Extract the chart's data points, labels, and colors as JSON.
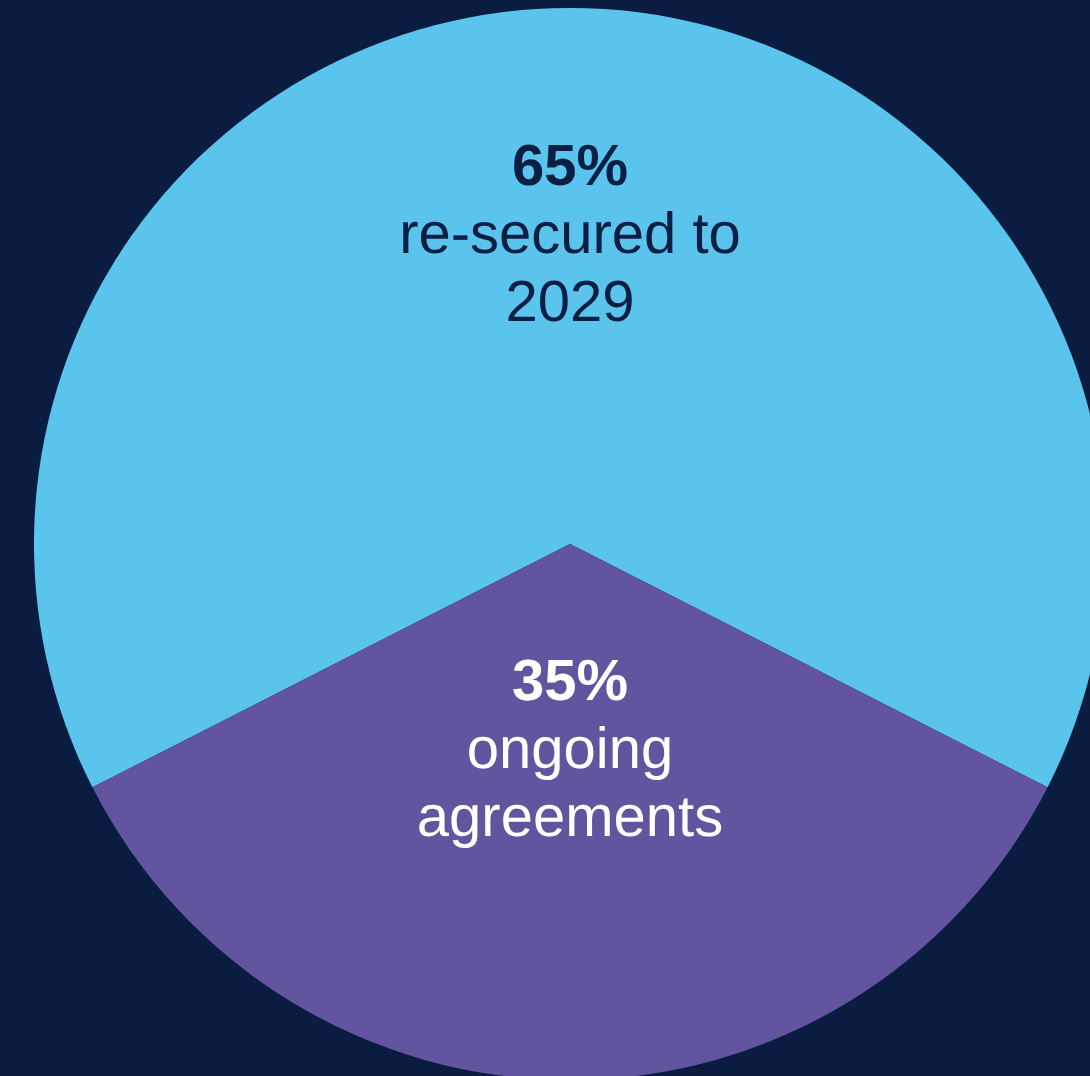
{
  "chart_data": {
    "type": "pie",
    "categories": [
      "re-secured to 2029",
      "ongoing agreements"
    ],
    "values": [
      65,
      35
    ],
    "value_labels": [
      "65%",
      "35%"
    ],
    "colors": [
      "#5bc4ec",
      "#62549e"
    ]
  }
}
